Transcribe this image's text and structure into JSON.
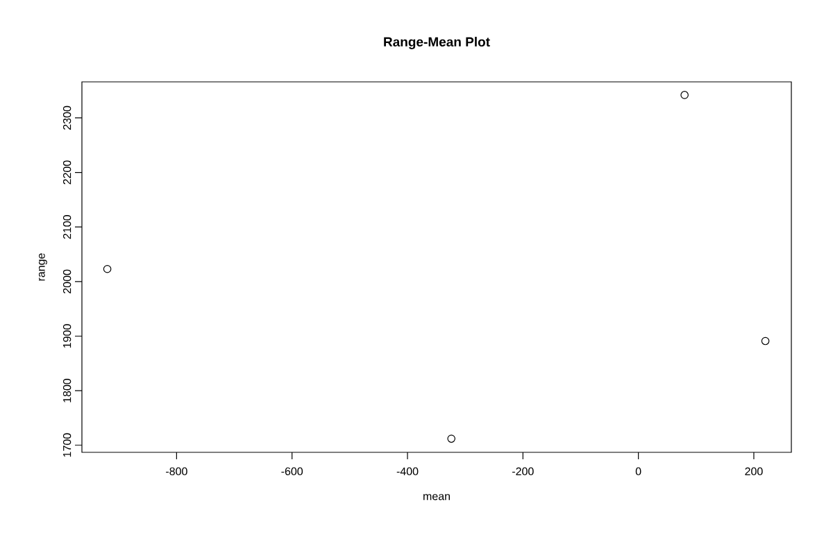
{
  "chart_data": {
    "type": "scatter",
    "title": "Range-Mean Plot",
    "xlabel": "mean",
    "ylabel": "range",
    "x": [
      -920,
      -324,
      80,
      220
    ],
    "values": [
      2023,
      1712,
      2342,
      1891
    ],
    "color": "#000000",
    "marker": "circle",
    "xlim": [
      -964,
      265
    ],
    "ylim": [
      1687,
      2366
    ],
    "xticks": [
      -800,
      -600,
      -400,
      -200,
      0,
      200
    ],
    "yticks": [
      1700,
      1800,
      1900,
      2000,
      2100,
      2200,
      2300
    ]
  }
}
